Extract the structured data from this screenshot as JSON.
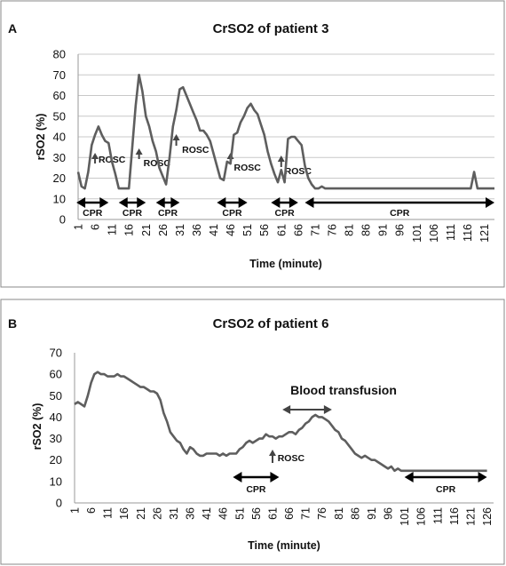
{
  "panels": [
    {
      "panel_label": "A",
      "title": "CrSO2 of patient 3",
      "ylabel": "rSO2 (%)",
      "xlabel": "Time (minute)",
      "yticks": [
        "0",
        "10",
        "20",
        "30",
        "40",
        "50",
        "60",
        "70",
        "80"
      ],
      "xticks": [
        "1",
        "6",
        "11",
        "16",
        "21",
        "26",
        "31",
        "36",
        "41",
        "46",
        "51",
        "56",
        "61",
        "66",
        "71",
        "76",
        "81",
        "86",
        "91",
        "96",
        "101",
        "106",
        "111",
        "116",
        "121"
      ]
    },
    {
      "panel_label": "B",
      "title": "CrSO2 of patient 6",
      "ylabel": "rSO2 (%)",
      "xlabel": "Time (minute)",
      "yticks": [
        "0",
        "10",
        "20",
        "30",
        "40",
        "50",
        "60",
        "70"
      ],
      "xticks": [
        "1",
        "6",
        "11",
        "16",
        "21",
        "26",
        "31",
        "36",
        "41",
        "46",
        "51",
        "56",
        "61",
        "66",
        "71",
        "76",
        "81",
        "86",
        "91",
        "96",
        "101",
        "106",
        "111",
        "116",
        "121",
        "126"
      ]
    }
  ],
  "chart_data": [
    {
      "type": "line",
      "title": "CrSO2 of patient 3",
      "xlabel": "Time (minute)",
      "ylabel": "rSO2 (%)",
      "xlim": [
        1,
        124
      ],
      "ylim": [
        0,
        80
      ],
      "grid": true,
      "series": [
        {
          "x": [
            1,
            2,
            3,
            4,
            5,
            6,
            7,
            8,
            9,
            10,
            11,
            12,
            13,
            14,
            15,
            16,
            17,
            18,
            19,
            20,
            21,
            22,
            23,
            24,
            25,
            26,
            27,
            28,
            29,
            30,
            31,
            32,
            33,
            34,
            35,
            36,
            37,
            38,
            39,
            40,
            41,
            42,
            43,
            44,
            45,
            46,
            47,
            48,
            49,
            50,
            51,
            52,
            53,
            54,
            55,
            56,
            57,
            58,
            59,
            60,
            61,
            62,
            63,
            64,
            65,
            66,
            67,
            68,
            69,
            70,
            71,
            72,
            73,
            74,
            75,
            116,
            117,
            118,
            119,
            124
          ],
          "values": [
            23,
            16,
            15,
            23,
            36,
            41,
            45,
            41,
            38,
            37,
            28,
            22,
            15,
            15,
            15,
            15,
            35,
            55,
            70,
            62,
            50,
            45,
            38,
            33,
            25,
            21,
            17,
            30,
            45,
            53,
            63,
            64,
            60,
            56,
            52,
            48,
            43,
            43,
            41,
            38,
            32,
            26,
            20,
            19,
            28,
            27,
            41,
            42,
            47,
            50,
            54,
            56,
            53,
            51,
            46,
            41,
            33,
            27,
            22,
            18,
            24,
            18,
            39,
            40,
            40,
            38,
            36,
            26,
            20,
            17,
            15,
            15,
            16,
            15,
            15,
            15,
            15,
            23,
            15,
            15
          ]
        }
      ],
      "annotations": {
        "rosc": [
          "ROSC",
          "ROSC",
          "ROSC",
          "ROSC",
          "ROSC"
        ],
        "cpr": [
          "CPR",
          "CPR",
          "CPR",
          "CPR",
          "CPR",
          "CPR"
        ]
      }
    },
    {
      "type": "line",
      "title": "CrSO2 of patient 6",
      "xlabel": "Time (minute)",
      "ylabel": "rSO2 (%)",
      "xlim": [
        1,
        128
      ],
      "ylim": [
        0,
        70
      ],
      "grid": false,
      "series": [
        {
          "x": [
            1,
            2,
            3,
            4,
            5,
            6,
            7,
            8,
            9,
            10,
            11,
            12,
            13,
            14,
            15,
            16,
            17,
            18,
            19,
            20,
            21,
            22,
            23,
            24,
            25,
            26,
            27,
            28,
            29,
            30,
            31,
            32,
            33,
            34,
            35,
            36,
            37,
            38,
            39,
            40,
            41,
            42,
            43,
            44,
            45,
            46,
            47,
            48,
            49,
            50,
            51,
            52,
            53,
            54,
            55,
            56,
            57,
            58,
            59,
            60,
            61,
            62,
            63,
            64,
            65,
            66,
            67,
            68,
            69,
            70,
            71,
            72,
            73,
            74,
            75,
            76,
            77,
            78,
            79,
            80,
            81,
            82,
            83,
            84,
            85,
            86,
            87,
            88,
            89,
            90,
            91,
            92,
            93,
            94,
            95,
            96,
            97,
            98,
            99,
            100,
            101,
            102,
            126
          ],
          "values": [
            46,
            47,
            46,
            45,
            50,
            56,
            60,
            61,
            60,
            60,
            59,
            59,
            59,
            60,
            59,
            59,
            58,
            57,
            56,
            55,
            54,
            54,
            53,
            52,
            52,
            51,
            48,
            42,
            38,
            33,
            31,
            29,
            28,
            25,
            23,
            26,
            25,
            23,
            22,
            22,
            23,
            23,
            23,
            23,
            22,
            23,
            22,
            23,
            23,
            23,
            25,
            26,
            28,
            29,
            28,
            29,
            30,
            30,
            32,
            31,
            31,
            30,
            31,
            31,
            32,
            33,
            33,
            32,
            34,
            35,
            37,
            38,
            40,
            41,
            40,
            40,
            39,
            38,
            36,
            34,
            33,
            30,
            29,
            27,
            25,
            23,
            22,
            21,
            22,
            21,
            20,
            20,
            19,
            18,
            17,
            16,
            17,
            15,
            16,
            15,
            15,
            15,
            15
          ]
        }
      ],
      "annotations": {
        "rosc": [
          "ROSC"
        ],
        "cpr": [
          "CPR",
          "CPR"
        ],
        "blood": "Blood transfusion"
      }
    }
  ],
  "style": {
    "line_color": "#5e5e5e",
    "grid_color": "#c8c8c8",
    "frame_color": "#8a8a8a"
  }
}
